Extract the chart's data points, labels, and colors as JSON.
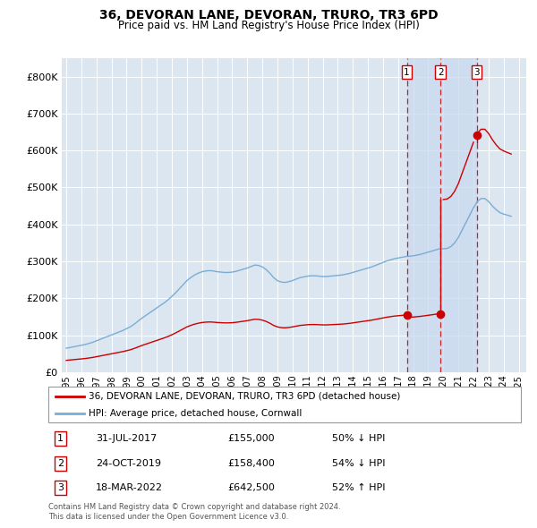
{
  "title": "36, DEVORAN LANE, DEVORAN, TRURO, TR3 6PD",
  "subtitle": "Price paid vs. HM Land Registry's House Price Index (HPI)",
  "hpi_label": "HPI: Average price, detached house, Cornwall",
  "property_label": "36, DEVORAN LANE, DEVORAN, TRURO, TR3 6PD (detached house)",
  "footnote1": "Contains HM Land Registry data © Crown copyright and database right 2024.",
  "footnote2": "This data is licensed under the Open Government Licence v3.0.",
  "xlim": [
    1994.7,
    2025.5
  ],
  "ylim": [
    0,
    850000
  ],
  "yticks": [
    0,
    100000,
    200000,
    300000,
    400000,
    500000,
    600000,
    700000,
    800000
  ],
  "ytick_labels": [
    "£0",
    "£100K",
    "£200K",
    "£300K",
    "£400K",
    "£500K",
    "£600K",
    "£700K",
    "£800K"
  ],
  "fig_bg": "#ffffff",
  "plot_bg": "#dce6f0",
  "grid_color": "#ffffff",
  "hpi_color": "#7aadd4",
  "property_color": "#cc0000",
  "transaction_dates": [
    2017.58,
    2019.82,
    2022.21
  ],
  "transaction_prices": [
    155000,
    158400,
    642500
  ],
  "transaction_labels": [
    "1",
    "2",
    "3"
  ],
  "transaction_info": [
    {
      "label": "1",
      "date": "31-JUL-2017",
      "price": "£155,000",
      "hpi": "50% ↓ HPI"
    },
    {
      "label": "2",
      "date": "24-OCT-2019",
      "price": "£158,400",
      "hpi": "54% ↓ HPI"
    },
    {
      "label": "3",
      "date": "18-MAR-2022",
      "price": "£642,500",
      "hpi": "52% ↑ HPI"
    }
  ],
  "hpi_x": [
    1995.0,
    1995.25,
    1995.5,
    1995.75,
    1996.0,
    1996.25,
    1996.5,
    1996.75,
    1997.0,
    1997.25,
    1997.5,
    1997.75,
    1998.0,
    1998.25,
    1998.5,
    1998.75,
    1999.0,
    1999.25,
    1999.5,
    1999.75,
    2000.0,
    2000.25,
    2000.5,
    2000.75,
    2001.0,
    2001.25,
    2001.5,
    2001.75,
    2002.0,
    2002.25,
    2002.5,
    2002.75,
    2003.0,
    2003.25,
    2003.5,
    2003.75,
    2004.0,
    2004.25,
    2004.5,
    2004.75,
    2005.0,
    2005.25,
    2005.5,
    2005.75,
    2006.0,
    2006.25,
    2006.5,
    2006.75,
    2007.0,
    2007.25,
    2007.5,
    2007.75,
    2008.0,
    2008.25,
    2008.5,
    2008.75,
    2009.0,
    2009.25,
    2009.5,
    2009.75,
    2010.0,
    2010.25,
    2010.5,
    2010.75,
    2011.0,
    2011.25,
    2011.5,
    2011.75,
    2012.0,
    2012.25,
    2012.5,
    2012.75,
    2013.0,
    2013.25,
    2013.5,
    2013.75,
    2014.0,
    2014.25,
    2014.5,
    2014.75,
    2015.0,
    2015.25,
    2015.5,
    2015.75,
    2016.0,
    2016.25,
    2016.5,
    2016.75,
    2017.0,
    2017.25,
    2017.5,
    2017.75,
    2018.0,
    2018.25,
    2018.5,
    2018.75,
    2019.0,
    2019.25,
    2019.5,
    2019.75,
    2020.0,
    2020.25,
    2020.5,
    2020.75,
    2021.0,
    2021.25,
    2021.5,
    2021.75,
    2022.0,
    2022.25,
    2022.5,
    2022.75,
    2023.0,
    2023.25,
    2023.5,
    2023.75,
    2024.0,
    2024.25,
    2024.5
  ],
  "hpi_y": [
    65000,
    67000,
    69000,
    71000,
    73000,
    75000,
    78000,
    81000,
    85000,
    89000,
    93000,
    97000,
    101000,
    105000,
    109000,
    113000,
    118000,
    123000,
    130000,
    138000,
    146000,
    153000,
    160000,
    167000,
    174000,
    181000,
    188000,
    196000,
    205000,
    215000,
    226000,
    237000,
    248000,
    256000,
    263000,
    268000,
    272000,
    274000,
    275000,
    274000,
    272000,
    271000,
    270000,
    270000,
    271000,
    273000,
    276000,
    279000,
    282000,
    286000,
    290000,
    289000,
    285000,
    278000,
    268000,
    256000,
    248000,
    244000,
    243000,
    245000,
    248000,
    252000,
    256000,
    258000,
    260000,
    261000,
    261000,
    260000,
    259000,
    259000,
    260000,
    261000,
    262000,
    263000,
    265000,
    267000,
    270000,
    273000,
    276000,
    279000,
    282000,
    285000,
    289000,
    293000,
    297000,
    301000,
    304000,
    307000,
    309000,
    311000,
    313000,
    314000,
    315000,
    317000,
    319000,
    322000,
    325000,
    328000,
    331000,
    334000,
    334000,
    335000,
    340000,
    350000,
    365000,
    385000,
    405000,
    425000,
    445000,
    462000,
    470000,
    470000,
    462000,
    450000,
    440000,
    432000,
    428000,
    425000,
    422000
  ]
}
